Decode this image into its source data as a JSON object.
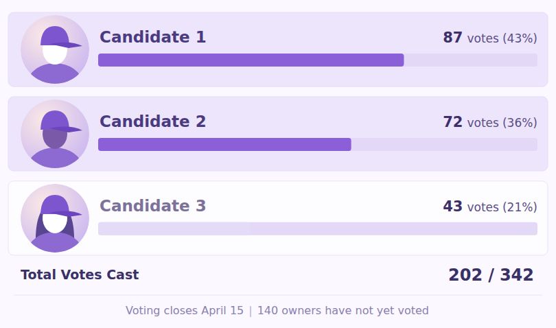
{
  "chart_data": {
    "type": "bar",
    "orientation": "horizontal",
    "categories": [
      "Candidate 1",
      "Candidate 2",
      "Candidate 3"
    ],
    "values": [
      87,
      72,
      43
    ],
    "colors": [
      "#8b5fd8",
      "#8b5fd8",
      "#e4dbf6"
    ],
    "xlim": [
      0,
      125
    ],
    "tick_labels": false,
    "data_labels": true,
    "value_unit": "votes",
    "percent_labels": [
      "(43%)",
      "(36%)",
      "(21%)"
    ],
    "total_label": "Total Votes Cast",
    "total_cast": 202,
    "total_eligible": 342,
    "total_separator": "/",
    "footer": [
      "Voting closes April 15",
      "140 owners have not yet voted"
    ],
    "footer_separator": "|"
  }
}
